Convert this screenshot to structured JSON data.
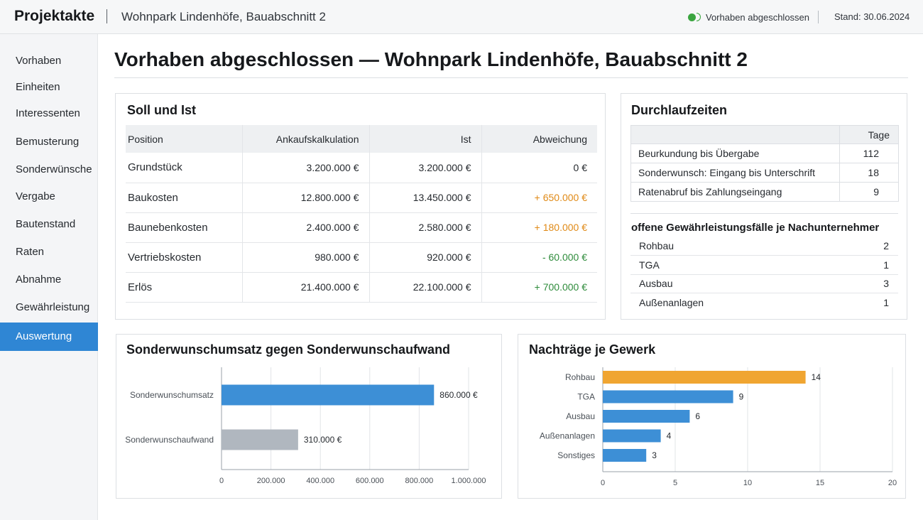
{
  "header": {
    "app_title": "Projektakte",
    "project_name": "Wohnpark Lindenhöfe, Bauabschnitt 2",
    "status_text": "Vorhaben abgeschlossen",
    "status_color": "#3aa53f",
    "stand": "Stand: 30.06.2024"
  },
  "sidebar": {
    "items": [
      {
        "label": "Vorhaben"
      },
      {
        "label": "Einheiten"
      },
      {
        "label": "Interessenten"
      },
      {
        "label": "Bemusterung"
      },
      {
        "label": "Sonderwünsche"
      },
      {
        "label": "Vergabe"
      },
      {
        "label": "Bautenstand"
      },
      {
        "label": "Raten"
      },
      {
        "label": "Abnahme"
      },
      {
        "label": "Gewährleistung"
      },
      {
        "label": "Auswertung",
        "active": true
      }
    ],
    "active_color": "#2f86d4"
  },
  "main": {
    "title": "Vorhaben abgeschlossen — Wohnpark Lindenhöfe, Bauabschnitt 2"
  },
  "soll_ist": {
    "title": "Soll und Ist",
    "headers": [
      "Position",
      "Ankaufskalkulation",
      "Ist",
      "Abweichung"
    ],
    "rows": [
      {
        "position": "Grundstück",
        "soll": "3.200.000 €",
        "ist": "3.200.000 €",
        "abw": "0 €",
        "tone": "neutral"
      },
      {
        "position": "Baukosten",
        "soll": "12.800.000 €",
        "ist": "13.450.000 €",
        "abw": "+ 650.000 €",
        "tone": "pos"
      },
      {
        "position": "Baunebenkosten",
        "soll": "2.400.000 €",
        "ist": "2.580.000 €",
        "abw": "+ 180.000 €",
        "tone": "pos"
      },
      {
        "position": "Vertriebskosten",
        "soll": "980.000 €",
        "ist": "920.000 €",
        "abw": "- 60.000 €",
        "tone": "neg"
      },
      {
        "position": "Erlös",
        "soll": "21.400.000 €",
        "ist": "22.100.000 €",
        "abw": "+ 700.000 €",
        "tone": "neg"
      }
    ],
    "colors": {
      "increase": "#e08a17",
      "favorable": "#2f8c3c"
    }
  },
  "durchlauf": {
    "title": "Durchlaufzeiten",
    "header_days": "Tage",
    "rows": [
      {
        "label": "Beurkundung bis Übergabe",
        "value": "112"
      },
      {
        "label": "Sonderwunsch: Eingang bis Unterschrift",
        "value": "18"
      },
      {
        "label": "Ratenabruf bis Zahlungseingang",
        "value": "9"
      }
    ],
    "gewaehr_title": "offene Gewährleistungsfälle je Nachunternehmer",
    "gewaehr_rows": [
      {
        "label": "Rohbau",
        "value": "2"
      },
      {
        "label": "TGA",
        "value": "1"
      },
      {
        "label": "Ausbau",
        "value": "3"
      },
      {
        "label": "Außenanlagen",
        "value": "1"
      }
    ]
  },
  "chart_data": [
    {
      "type": "bar",
      "orientation": "horizontal",
      "title": "Sonderwunschumsatz gegen Sonderwunschaufwand",
      "categories": [
        "Sonderwunschumsatz",
        "Sonderwunschaufwand"
      ],
      "values": [
        860000,
        310000
      ],
      "value_labels": [
        "860.000 €",
        "310.000 €"
      ],
      "colors": [
        "#3d8fd6",
        "#b0b7bf"
      ],
      "xlim": [
        0,
        1000000
      ],
      "xticks": [
        "0",
        "200.000",
        "400.000",
        "600.000",
        "800.000",
        "1.000.000"
      ],
      "grid": true
    },
    {
      "type": "bar",
      "orientation": "horizontal",
      "title": "Nachträge je Gewerk",
      "categories": [
        "Rohbau",
        "TGA",
        "Ausbau",
        "Außenanlagen",
        "Sonstiges"
      ],
      "values": [
        14,
        9,
        6,
        4,
        3
      ],
      "value_labels": [
        "14",
        "9",
        "6",
        "4",
        "3"
      ],
      "colors": [
        "#f0a531",
        "#3d8fd6",
        "#3d8fd6",
        "#3d8fd6",
        "#3d8fd6"
      ],
      "xlim": [
        0,
        20
      ],
      "xticks": [
        "0",
        "5",
        "10",
        "15",
        "20"
      ],
      "grid": true
    }
  ]
}
